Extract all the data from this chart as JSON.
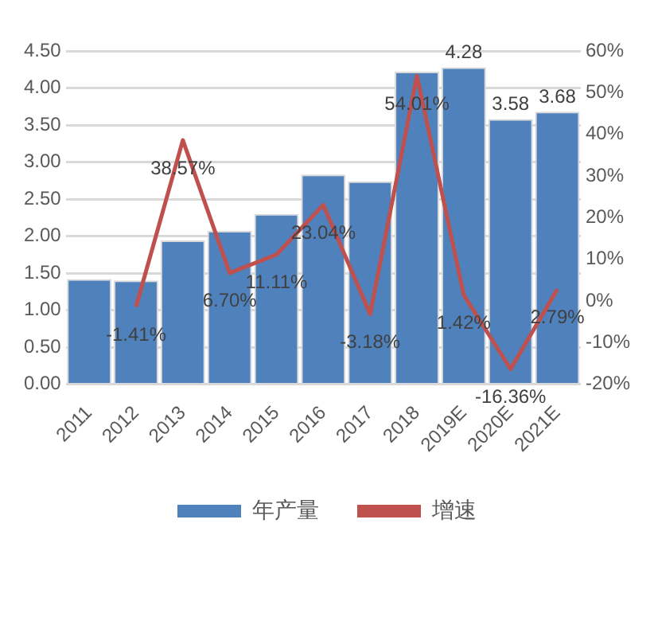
{
  "chart_data": {
    "type": "bar",
    "categories": [
      "2011",
      "2012",
      "2013",
      "2014",
      "2015",
      "2016",
      "2017",
      "2018",
      "2019E",
      "2020E",
      "2021E"
    ],
    "series": [
      {
        "name": "年产量",
        "color": "#4f81bd",
        "values": [
          1.42,
          1.4,
          1.94,
          2.07,
          2.3,
          2.83,
          2.74,
          4.22,
          4.28,
          3.58,
          3.68
        ],
        "value_labels": [
          null,
          null,
          null,
          null,
          null,
          null,
          null,
          null,
          "4.28",
          "3.58",
          "3.68"
        ]
      },
      {
        "name": "增速",
        "type": "line",
        "axis": "y2",
        "color": "#c0504d",
        "values": [
          null,
          -1.41,
          38.57,
          6.7,
          11.11,
          23.04,
          -3.18,
          54.01,
          1.42,
          -16.36,
          2.79
        ],
        "value_labels": [
          null,
          "-1.41%",
          "38.57%",
          "6.70%",
          "11.11%",
          "23.04%",
          "-3.18%",
          "54.01%",
          "1.42%",
          "-16.36%",
          "2.79%"
        ]
      }
    ],
    "ylim": [
      0,
      4.5
    ],
    "yticks": [
      {
        "value": 0,
        "label": "0.00"
      },
      {
        "value": 0.5,
        "label": "0.50"
      },
      {
        "value": 1,
        "label": "1.00"
      },
      {
        "value": 1.5,
        "label": "1.50"
      },
      {
        "value": 2,
        "label": "2.00"
      },
      {
        "value": 2.5,
        "label": "2.50"
      },
      {
        "value": 3,
        "label": "3.00"
      },
      {
        "value": 3.5,
        "label": "3.50"
      },
      {
        "value": 4,
        "label": "4.00"
      },
      {
        "value": 4.5,
        "label": "4.50"
      }
    ],
    "y2lim": [
      -20,
      60
    ],
    "y2ticks": [
      {
        "value": -20,
        "label": "-20%"
      },
      {
        "value": -10,
        "label": "-10%"
      },
      {
        "value": 0,
        "label": "0%"
      },
      {
        "value": 10,
        "label": "10%"
      },
      {
        "value": 20,
        "label": "20%"
      },
      {
        "value": 30,
        "label": "30%"
      },
      {
        "value": 40,
        "label": "40%"
      },
      {
        "value": 50,
        "label": "50%"
      },
      {
        "value": 60,
        "label": "60%"
      }
    ],
    "grid": "y",
    "legend": "bottom",
    "marker": "none",
    "line_style": "solid"
  }
}
